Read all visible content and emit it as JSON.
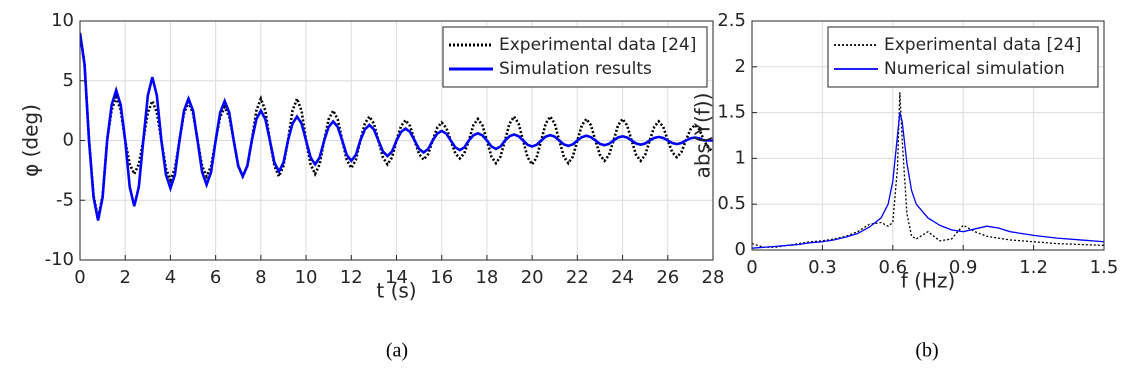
{
  "chart_data": [
    {
      "type": "line",
      "xlabel": "t (s)",
      "ylabel": "φ (deg)",
      "caption": "(a)",
      "xlim": [
        0,
        28
      ],
      "ylim": [
        -10,
        10
      ],
      "xticks": [
        0,
        2,
        4,
        6,
        8,
        10,
        12,
        14,
        16,
        18,
        20,
        22,
        24,
        26,
        28
      ],
      "yticks": [
        -10,
        -5,
        0,
        5,
        10
      ],
      "grid": true,
      "legend": "upper right",
      "line_width": 2.6,
      "x": [
        0,
        0.2,
        0.4,
        0.6,
        0.8,
        1,
        1.2,
        1.4,
        1.6,
        1.8,
        2,
        2.2,
        2.4,
        2.6,
        2.8,
        3,
        3.2,
        3.4,
        3.6,
        3.8,
        4,
        4.2,
        4.4,
        4.6,
        4.8,
        5,
        5.2,
        5.4,
        5.6,
        5.8,
        6,
        6.2,
        6.4,
        6.6,
        6.8,
        7,
        7.2,
        7.4,
        7.6,
        7.8,
        8,
        8.2,
        8.4,
        8.6,
        8.8,
        9,
        9.2,
        9.4,
        9.6,
        9.8,
        10,
        10.2,
        10.4,
        10.6,
        10.8,
        11,
        11.2,
        11.4,
        11.6,
        11.8,
        12,
        12.2,
        12.4,
        12.6,
        12.8,
        13,
        13.2,
        13.4,
        13.6,
        13.8,
        14,
        14.2,
        14.4,
        14.6,
        14.8,
        15,
        15.2,
        15.4,
        15.6,
        15.8,
        16,
        16.2,
        16.4,
        16.6,
        16.8,
        17,
        17.2,
        17.4,
        17.6,
        17.8,
        18,
        18.2,
        18.4,
        18.6,
        18.8,
        19,
        19.2,
        19.4,
        19.6,
        19.8,
        20,
        20.2,
        20.4,
        20.6,
        20.8,
        21,
        21.2,
        21.4,
        21.6,
        21.8,
        22,
        22.2,
        22.4,
        22.6,
        22.8,
        23,
        23.2,
        23.4,
        23.6,
        23.8,
        24,
        24.2,
        24.4,
        24.6,
        24.8,
        25,
        25.2,
        25.4,
        25.6,
        25.8,
        26,
        26.2,
        26.4,
        26.6,
        26.8,
        27,
        27.2,
        27.4,
        27.6,
        27.8,
        28
      ],
      "series": [
        {
          "name": "Experimental data [24]",
          "color": "#000000",
          "style": "dotted",
          "values": [
            9,
            6.39,
            0,
            -4.62,
            -6.5,
            -4.62,
            0,
            2.56,
            3.6,
            2.56,
            0,
            -1.99,
            -2.8,
            -1.99,
            0,
            2.34,
            3.3,
            2.34,
            0,
            -2.34,
            -3.3,
            -2.34,
            0,
            2.27,
            3.2,
            2.27,
            0,
            -2.13,
            -3,
            -2.13,
            0,
            1.99,
            2.8,
            1.99,
            0,
            -2.13,
            -3,
            -2.13,
            0,
            2.49,
            3.5,
            2.49,
            0,
            -2.13,
            -3,
            -2.13,
            0,
            2.49,
            3.5,
            2.49,
            0,
            -1.99,
            -2.8,
            -1.99,
            0,
            1.78,
            2.5,
            1.78,
            0,
            -1.63,
            -2.3,
            -1.63,
            0,
            1.42,
            2,
            1.42,
            0,
            -1.42,
            -2,
            -1.42,
            0,
            1.21,
            1.7,
            1.21,
            0,
            -1.14,
            -1.6,
            -1.14,
            0,
            1.07,
            1.5,
            1.07,
            0,
            -1.07,
            -1.5,
            -1.07,
            0,
            1.28,
            1.8,
            1.28,
            0,
            -1.35,
            -1.9,
            -1.35,
            0,
            1.42,
            2,
            1.42,
            0,
            -1.42,
            -2,
            -1.42,
            0,
            1.42,
            2,
            1.42,
            0,
            -1.35,
            -1.9,
            -1.35,
            0,
            1.28,
            1.8,
            1.28,
            0,
            -1.21,
            -1.7,
            -1.21,
            0,
            1.28,
            1.8,
            1.28,
            0,
            -1.21,
            -1.7,
            -1.21,
            0,
            1.14,
            1.6,
            1.14,
            0,
            -0.99,
            -1.4,
            -0.99,
            0,
            0.92,
            1.3,
            0.92,
            0,
            -0.64,
            -0.9
          ]
        },
        {
          "name": "Simulation results",
          "color": "#0000ff",
          "style": "solid",
          "values": [
            9,
            6.39,
            0,
            -4.76,
            -6.7,
            -4.76,
            0,
            2.98,
            4.2,
            2.98,
            0,
            -3.9,
            -5.5,
            -3.9,
            0,
            3.76,
            5.3,
            3.76,
            0,
            -2.84,
            -4,
            -2.84,
            0,
            2.49,
            3.5,
            2.49,
            0,
            -2.63,
            -3.7,
            -2.63,
            0,
            2.34,
            3.3,
            2.34,
            0,
            -2.13,
            -3,
            -2.13,
            0,
            1.78,
            2.5,
            1.78,
            0,
            -1.85,
            -2.6,
            -1.85,
            0,
            1.42,
            2,
            1.42,
            0,
            -1.42,
            -2,
            -1.42,
            0,
            1.14,
            1.6,
            1.14,
            0,
            -1.21,
            -1.7,
            -1.21,
            0,
            0.92,
            1.3,
            0.92,
            0,
            -0.92,
            -1.3,
            -0.92,
            0,
            0.71,
            1,
            0.71,
            0,
            -0.71,
            -1,
            -0.71,
            0,
            0.57,
            0.8,
            0.57,
            0,
            -0.57,
            -0.8,
            -0.57,
            0,
            0.43,
            0.6,
            0.43,
            0,
            -0.5,
            -0.7,
            -0.5,
            0,
            0.36,
            0.5,
            0.36,
            0,
            -0.36,
            -0.5,
            -0.36,
            0,
            0.32,
            0.45,
            0.32,
            0,
            -0.32,
            -0.45,
            -0.32,
            0,
            0.28,
            0.4,
            0.28,
            0,
            -0.28,
            -0.4,
            -0.28,
            0,
            0.25,
            0.35,
            0.25,
            0,
            -0.25,
            -0.35,
            -0.25,
            0,
            0.21,
            0.3,
            0.21,
            0,
            -0.21,
            -0.3,
            -0.21,
            0,
            0.18,
            0.25,
            0.18,
            0,
            0,
            0
          ]
        }
      ]
    },
    {
      "type": "line",
      "xlabel": "f (Hz)",
      "ylabel": "abs(Y(f))",
      "caption": "(b)",
      "xlim": [
        0,
        1.5
      ],
      "ylim": [
        0,
        2.5
      ],
      "xticks": [
        0,
        0.3,
        0.6,
        0.9,
        1.2,
        1.5
      ],
      "yticks": [
        0,
        0.5,
        1,
        1.5,
        2,
        2.5
      ],
      "grid": true,
      "legend": "upper right",
      "line_width": 1.3,
      "x": [
        0,
        0.05,
        0.1,
        0.15,
        0.2,
        0.25,
        0.3,
        0.35,
        0.4,
        0.45,
        0.5,
        0.55,
        0.58,
        0.6,
        0.62,
        0.63,
        0.64,
        0.66,
        0.68,
        0.7,
        0.75,
        0.8,
        0.85,
        0.9,
        0.95,
        1,
        1.05,
        1.1,
        1.2,
        1.3,
        1.4,
        1.5
      ],
      "series": [
        {
          "name": "Experimental data [24]",
          "color": "#000000",
          "style": "dotted",
          "values": [
            0.07,
            0.03,
            0.03,
            0.05,
            0.07,
            0.09,
            0.1,
            0.12,
            0.15,
            0.2,
            0.28,
            0.3,
            0.26,
            0.3,
            0.9,
            1.72,
            1.2,
            0.4,
            0.15,
            0.12,
            0.2,
            0.1,
            0.12,
            0.27,
            0.2,
            0.15,
            0.13,
            0.11,
            0.09,
            0.07,
            0.06,
            0.05
          ]
        },
        {
          "name": "Numerical simulation",
          "color": "#0000ff",
          "style": "solid",
          "values": [
            0.02,
            0.03,
            0.04,
            0.05,
            0.06,
            0.08,
            0.09,
            0.11,
            0.14,
            0.18,
            0.25,
            0.35,
            0.5,
            0.75,
            1.25,
            1.5,
            1.4,
            0.95,
            0.65,
            0.5,
            0.35,
            0.27,
            0.22,
            0.2,
            0.23,
            0.26,
            0.24,
            0.2,
            0.16,
            0.13,
            0.11,
            0.09
          ]
        }
      ]
    }
  ]
}
